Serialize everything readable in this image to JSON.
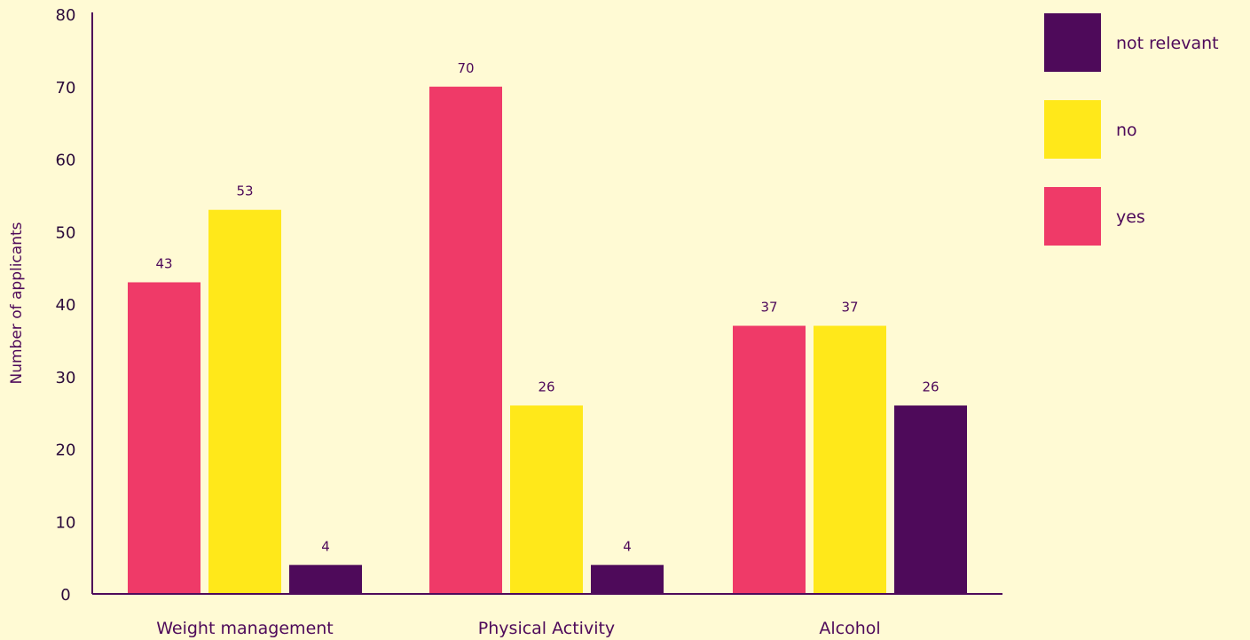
{
  "chart_data": {
    "type": "bar",
    "title": "",
    "xlabel": "",
    "ylabel": "Number of applicants",
    "ylim": [
      0,
      80
    ],
    "yticks": [
      0,
      10,
      20,
      30,
      40,
      50,
      60,
      70,
      80
    ],
    "grid": false,
    "legend_position": "top-right",
    "categories": [
      "Weight management",
      "Physical Activity",
      "Alcohol"
    ],
    "series": [
      {
        "name": "yes",
        "color": "#ef3a68",
        "values": [
          43,
          70,
          37
        ]
      },
      {
        "name": "no",
        "color": "#ffe81a",
        "values": [
          53,
          26,
          37
        ]
      },
      {
        "name": "not relevant",
        "color": "#4e0a5a",
        "values": [
          4,
          4,
          26
        ]
      }
    ],
    "legend_order": [
      "not relevant",
      "no",
      "yes"
    ]
  }
}
